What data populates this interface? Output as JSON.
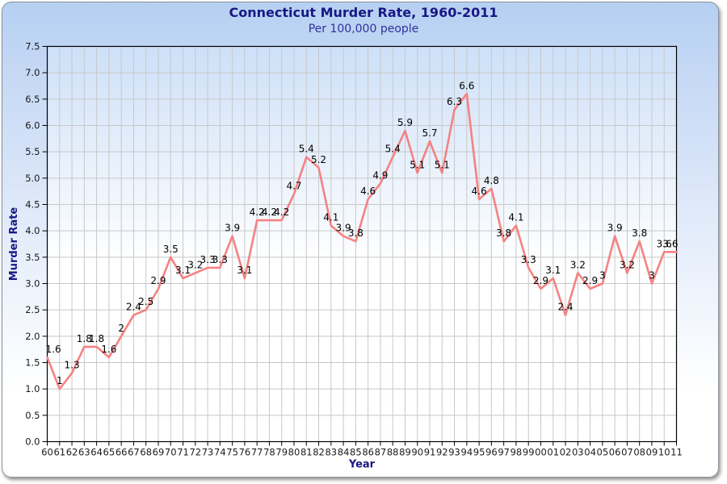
{
  "header": {
    "title": "Connecticut Murder Rate, 1960-2011",
    "subtitle": "Per 100,000 people"
  },
  "chart_data": {
    "type": "line",
    "title": "Connecticut Murder Rate, 1960-2011",
    "subtitle": "Per 100,000 people",
    "xlabel": "Year",
    "ylabel": "Murder Rate",
    "years": [
      1960,
      1961,
      1962,
      1963,
      1964,
      1965,
      1966,
      1967,
      1968,
      1969,
      1970,
      1971,
      1972,
      1973,
      1974,
      1975,
      1976,
      1977,
      1978,
      1979,
      1980,
      1981,
      1982,
      1983,
      1984,
      1985,
      1986,
      1987,
      1988,
      1989,
      1990,
      1991,
      1992,
      1993,
      1994,
      1995,
      1996,
      1997,
      1998,
      1999,
      2000,
      2001,
      2002,
      2003,
      2004,
      2005,
      2006,
      2007,
      2008,
      2009,
      2010,
      2011
    ],
    "x_tick_labels": [
      "60",
      "61",
      "62",
      "63",
      "64",
      "65",
      "66",
      "67",
      "68",
      "69",
      "70",
      "71",
      "72",
      "73",
      "74",
      "75",
      "76",
      "77",
      "78",
      "79",
      "80",
      "81",
      "82",
      "83",
      "84",
      "85",
      "86",
      "87",
      "88",
      "89",
      "90",
      "91",
      "92",
      "93",
      "94",
      "95",
      "96",
      "97",
      "98",
      "99",
      "00",
      "01",
      "02",
      "03",
      "04",
      "05",
      "06",
      "07",
      "08",
      "09",
      "10",
      "11"
    ],
    "values": [
      1.6,
      1,
      1.3,
      1.8,
      1.8,
      1.6,
      2,
      2.4,
      2.5,
      2.9,
      3.5,
      3.1,
      3.2,
      3.3,
      3.3,
      3.9,
      3.1,
      4.2,
      4.2,
      4.2,
      4.7,
      5.4,
      5.2,
      4.1,
      3.9,
      3.8,
      4.6,
      4.9,
      5.4,
      5.9,
      5.1,
      5.7,
      5.1,
      6.3,
      6.6,
      4.6,
      4.8,
      3.8,
      4.1,
      3.3,
      2.9,
      3.1,
      2.4,
      3.2,
      2.9,
      3,
      3.9,
      3.2,
      3.8,
      3,
      3.6,
      3.6
    ],
    "ylim": [
      0,
      7.5
    ],
    "y_tick_step": 0.5,
    "y_tick_labels": [
      "0.0",
      "0.5",
      "1.0",
      "1.5",
      "2.0",
      "2.5",
      "3.0",
      "3.5",
      "4.0",
      "4.5",
      "5.0",
      "5.5",
      "6.0",
      "6.5",
      "7.0",
      "7.5"
    ],
    "grid": true,
    "legend_position": "none",
    "colors": {
      "line": "#f58282",
      "grid": "#c8c8c8",
      "axis": "#000000",
      "tick_label": "#1a1a1a",
      "data_label": "#000000",
      "title": "#181885",
      "subtitle": "#31319b",
      "axis_title": "#181885",
      "plot_bg_top": "#cde0f8",
      "plot_bg_bottom": "#ffffff",
      "card_bg_top": "#b6d0f2"
    }
  }
}
